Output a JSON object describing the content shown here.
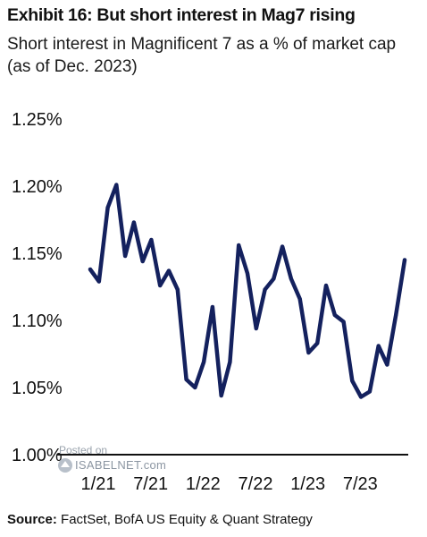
{
  "title": "Exhibit 16: But short interest in Mag7 rising",
  "subtitle": "Short interest in Magnificent 7 as a % of market cap (as of Dec. 2023)",
  "source_label": "Source:",
  "source_text": " FactSet, BofA US Equity & Quant Strategy",
  "watermark": {
    "posted": "Posted on",
    "site": "ISABELNET.com"
  },
  "colors": {
    "line": "#14215e",
    "axis": "#111111"
  },
  "chart_data": {
    "type": "line",
    "title": "Exhibit 16: But short interest in Mag7 rising",
    "subtitle": "Short interest in Magnificent 7 as a % of market cap (as of Dec. 2023)",
    "ylim": [
      1.0,
      1.25
    ],
    "y_ticks": [
      1.0,
      1.05,
      1.1,
      1.15,
      1.2,
      1.25
    ],
    "y_tick_labels": [
      "1.00%",
      "1.05%",
      "1.10%",
      "1.15%",
      "1.20%",
      "1.25%"
    ],
    "x_tick_labels": [
      "1/21",
      "7/21",
      "1/22",
      "7/22",
      "1/23",
      "7/23"
    ],
    "x_tick_index": [
      0,
      6,
      12,
      18,
      24,
      30
    ],
    "series": [
      {
        "x": [
          "2020-12",
          "2021-01",
          "2021-02",
          "2021-03",
          "2021-04",
          "2021-05",
          "2021-06",
          "2021-07",
          "2021-08",
          "2021-09",
          "2021-10",
          "2021-11",
          "2021-12",
          "2022-01",
          "2022-02",
          "2022-03",
          "2022-04",
          "2022-05",
          "2022-06",
          "2022-07",
          "2022-08",
          "2022-09",
          "2022-10",
          "2022-11",
          "2022-12",
          "2023-01",
          "2023-02",
          "2023-03",
          "2023-04",
          "2023-05",
          "2023-06",
          "2023-07",
          "2023-08",
          "2023-09",
          "2023-10",
          "2023-11",
          "2023-12"
        ],
        "values": [
          1.138,
          1.129,
          1.184,
          1.201,
          1.148,
          1.173,
          1.144,
          1.16,
          1.126,
          1.137,
          1.123,
          1.056,
          1.05,
          1.069,
          1.11,
          1.044,
          1.069,
          1.156,
          1.135,
          1.094,
          1.123,
          1.131,
          1.155,
          1.131,
          1.116,
          1.076,
          1.083,
          1.126,
          1.104,
          1.099,
          1.055,
          1.043,
          1.047,
          1.081,
          1.067,
          1.104,
          1.145
        ]
      }
    ],
    "grid": false,
    "legend": "none"
  }
}
